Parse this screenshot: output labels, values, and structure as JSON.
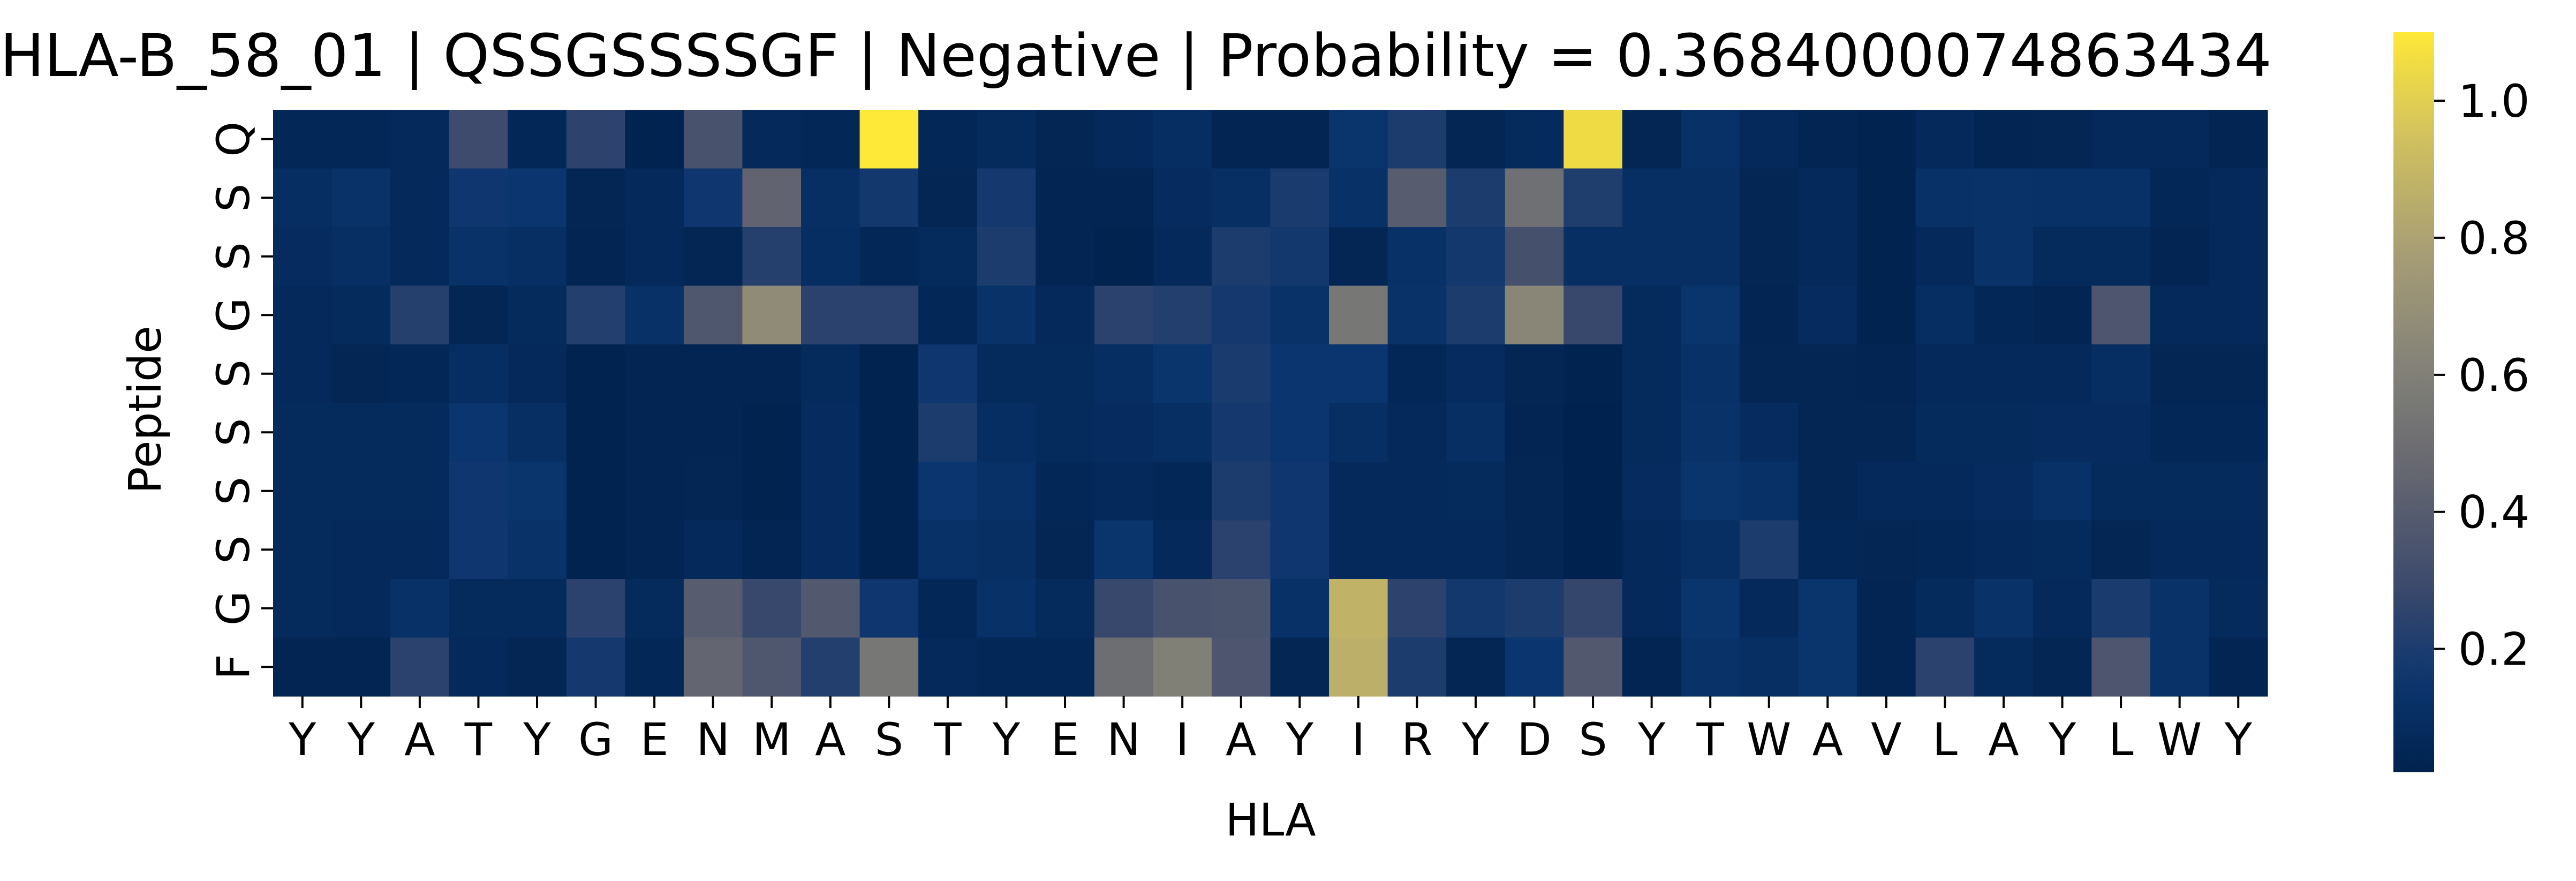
{
  "chart_data": {
    "type": "heatmap",
    "title": "HLA-B_58_01 | QSSGSSSSGF | Negative | Probability = 0.3684000074863434",
    "xlabel": "HLA",
    "ylabel": "Peptide",
    "x_tick_labels": [
      "Y",
      "Y",
      "A",
      "T",
      "Y",
      "G",
      "E",
      "N",
      "M",
      "A",
      "S",
      "T",
      "Y",
      "E",
      "N",
      "I",
      "A",
      "Y",
      "I",
      "R",
      "Y",
      "D",
      "S",
      "Y",
      "T",
      "W",
      "A",
      "V",
      "L",
      "A",
      "Y",
      "L",
      "W",
      "Y"
    ],
    "y_tick_labels": [
      "Q",
      "S",
      "S",
      "G",
      "S",
      "S",
      "S",
      "S",
      "G",
      "F"
    ],
    "colormap": "cividis",
    "colorbar_range": [
      0.02,
      1.1
    ],
    "colorbar_ticks": [
      "0.2",
      "0.4",
      "0.6",
      "0.8",
      "1.0"
    ],
    "values": [
      [
        0.06,
        0.06,
        0.07,
        0.3,
        0.06,
        0.25,
        0.03,
        0.34,
        0.07,
        0.06,
        1.1,
        0.06,
        0.08,
        0.05,
        0.07,
        0.1,
        0.04,
        0.04,
        0.14,
        0.2,
        0.05,
        0.08,
        1.05,
        0.05,
        0.12,
        0.07,
        0.04,
        0.03,
        0.07,
        0.04,
        0.05,
        0.07,
        0.07,
        0.04
      ],
      [
        0.1,
        0.13,
        0.07,
        0.16,
        0.15,
        0.05,
        0.07,
        0.16,
        0.44,
        0.11,
        0.17,
        0.05,
        0.18,
        0.04,
        0.04,
        0.09,
        0.11,
        0.19,
        0.12,
        0.4,
        0.2,
        0.51,
        0.21,
        0.11,
        0.11,
        0.05,
        0.07,
        0.03,
        0.12,
        0.13,
        0.12,
        0.12,
        0.06,
        0.07
      ],
      [
        0.09,
        0.11,
        0.07,
        0.13,
        0.11,
        0.04,
        0.07,
        0.05,
        0.23,
        0.1,
        0.06,
        0.08,
        0.2,
        0.04,
        0.03,
        0.07,
        0.2,
        0.17,
        0.05,
        0.12,
        0.17,
        0.33,
        0.11,
        0.11,
        0.11,
        0.05,
        0.07,
        0.03,
        0.07,
        0.13,
        0.08,
        0.08,
        0.04,
        0.07
      ],
      [
        0.07,
        0.08,
        0.23,
        0.05,
        0.08,
        0.22,
        0.12,
        0.37,
        0.67,
        0.24,
        0.24,
        0.06,
        0.13,
        0.07,
        0.24,
        0.22,
        0.18,
        0.13,
        0.55,
        0.13,
        0.2,
        0.64,
        0.28,
        0.08,
        0.14,
        0.04,
        0.09,
        0.03,
        0.1,
        0.06,
        0.04,
        0.36,
        0.07,
        0.07
      ],
      [
        0.07,
        0.05,
        0.06,
        0.1,
        0.07,
        0.03,
        0.04,
        0.04,
        0.04,
        0.08,
        0.03,
        0.16,
        0.08,
        0.08,
        0.1,
        0.14,
        0.19,
        0.15,
        0.15,
        0.06,
        0.09,
        0.05,
        0.03,
        0.08,
        0.12,
        0.05,
        0.05,
        0.04,
        0.07,
        0.07,
        0.07,
        0.1,
        0.05,
        0.05
      ],
      [
        0.08,
        0.08,
        0.08,
        0.15,
        0.11,
        0.03,
        0.04,
        0.04,
        0.03,
        0.09,
        0.03,
        0.2,
        0.1,
        0.08,
        0.09,
        0.11,
        0.18,
        0.15,
        0.11,
        0.07,
        0.11,
        0.04,
        0.02,
        0.08,
        0.13,
        0.09,
        0.05,
        0.05,
        0.08,
        0.08,
        0.09,
        0.09,
        0.06,
        0.06
      ],
      [
        0.08,
        0.08,
        0.08,
        0.16,
        0.14,
        0.03,
        0.04,
        0.05,
        0.03,
        0.09,
        0.03,
        0.15,
        0.12,
        0.06,
        0.07,
        0.06,
        0.2,
        0.16,
        0.07,
        0.07,
        0.08,
        0.05,
        0.02,
        0.09,
        0.14,
        0.12,
        0.05,
        0.07,
        0.07,
        0.09,
        0.12,
        0.08,
        0.08,
        0.08
      ],
      [
        0.08,
        0.07,
        0.07,
        0.16,
        0.13,
        0.03,
        0.04,
        0.07,
        0.04,
        0.09,
        0.03,
        0.12,
        0.11,
        0.05,
        0.14,
        0.07,
        0.24,
        0.16,
        0.07,
        0.07,
        0.07,
        0.05,
        0.02,
        0.07,
        0.11,
        0.2,
        0.06,
        0.05,
        0.06,
        0.07,
        0.08,
        0.05,
        0.07,
        0.07
      ],
      [
        0.08,
        0.07,
        0.12,
        0.08,
        0.08,
        0.24,
        0.08,
        0.4,
        0.28,
        0.38,
        0.16,
        0.06,
        0.12,
        0.08,
        0.28,
        0.34,
        0.35,
        0.12,
        0.88,
        0.25,
        0.17,
        0.2,
        0.27,
        0.07,
        0.14,
        0.07,
        0.14,
        0.04,
        0.08,
        0.13,
        0.07,
        0.19,
        0.13,
        0.08
      ],
      [
        0.04,
        0.04,
        0.24,
        0.07,
        0.05,
        0.18,
        0.06,
        0.45,
        0.37,
        0.22,
        0.55,
        0.07,
        0.06,
        0.06,
        0.5,
        0.6,
        0.36,
        0.05,
        0.86,
        0.2,
        0.05,
        0.15,
        0.38,
        0.04,
        0.13,
        0.11,
        0.14,
        0.04,
        0.24,
        0.08,
        0.05,
        0.36,
        0.13,
        0.04
      ]
    ]
  }
}
